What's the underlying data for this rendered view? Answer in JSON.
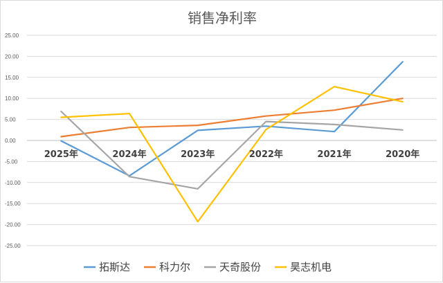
{
  "chart_data": {
    "type": "line",
    "title": "销售净利率",
    "categories": [
      "2025年",
      "2024年",
      "2023年",
      "2022年",
      "2021年",
      "2020年"
    ],
    "ylim": [
      -25,
      25
    ],
    "yticks": [
      "25.00",
      "20.00",
      "15.00",
      "10.00",
      "5.00",
      "0.00",
      "-5.00",
      "-10.00",
      "-15.00",
      "-20.00",
      "-25.00"
    ],
    "grid": true,
    "legend_position": "bottom",
    "series": [
      {
        "name": "拓斯达",
        "color": "#5B9BD5",
        "values": [
          -0.1,
          -8.4,
          2.4,
          3.4,
          2.1,
          18.7
        ]
      },
      {
        "name": "科力尔",
        "color": "#ED7D31",
        "values": [
          0.9,
          3.1,
          3.6,
          5.8,
          7.2,
          10.0
        ]
      },
      {
        "name": "天奇股份",
        "color": "#A5A5A5",
        "values": [
          6.9,
          -8.6,
          -11.5,
          4.5,
          3.8,
          2.5
        ]
      },
      {
        "name": "昊志机电",
        "color": "#FFC000",
        "values": [
          5.5,
          6.4,
          -19.3,
          2.6,
          12.8,
          9.2
        ]
      }
    ]
  }
}
